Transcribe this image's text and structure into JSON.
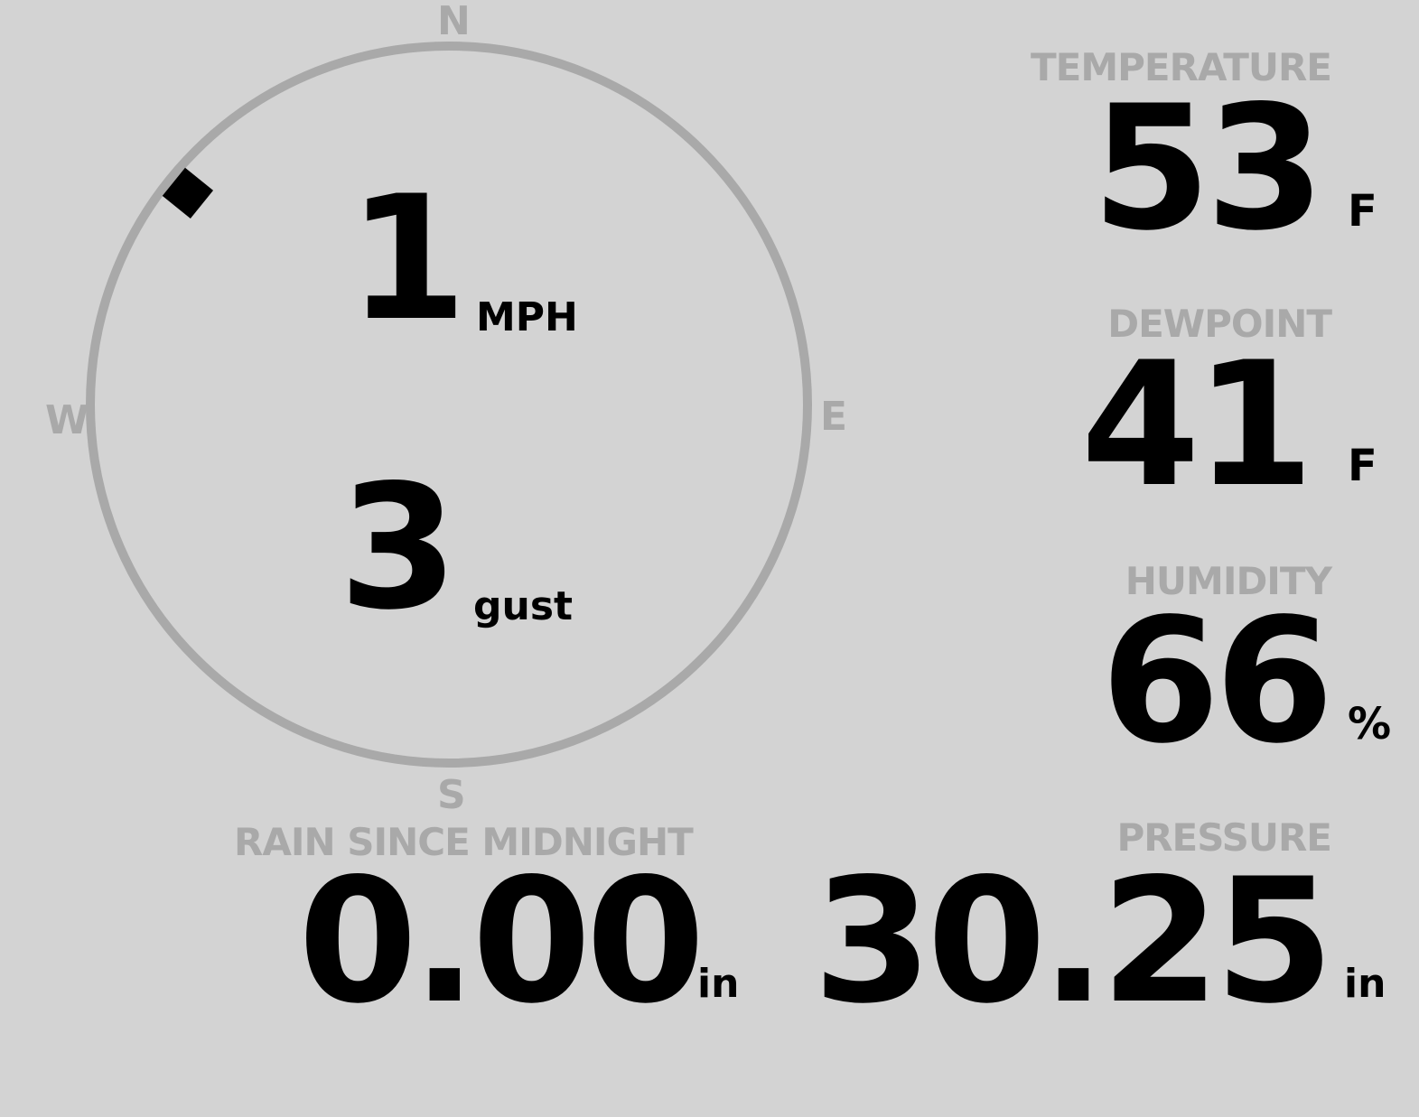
{
  "wind": {
    "speed": "1",
    "speed_unit": "MPH",
    "gust": "3",
    "gust_unit": "gust",
    "direction_degrees": 309,
    "compass": {
      "n": "N",
      "e": "E",
      "s": "S",
      "w": "W"
    }
  },
  "temperature": {
    "label": "TEMPERATURE",
    "value": "53",
    "unit": "F"
  },
  "dewpoint": {
    "label": "DEWPOINT",
    "value": "41",
    "unit": "F"
  },
  "humidity": {
    "label": "HUMIDITY",
    "value": "66",
    "unit": "%"
  },
  "rain": {
    "label": "RAIN SINCE MIDNIGHT",
    "value": "0.00",
    "unit": "in"
  },
  "pressure": {
    "label": "PRESSURE",
    "value": "30.25",
    "unit": "in"
  },
  "colors": {
    "background": "#d3d3d3",
    "label": "#a9a9a9",
    "value": "#000000",
    "dial": "#a9a9a9"
  }
}
